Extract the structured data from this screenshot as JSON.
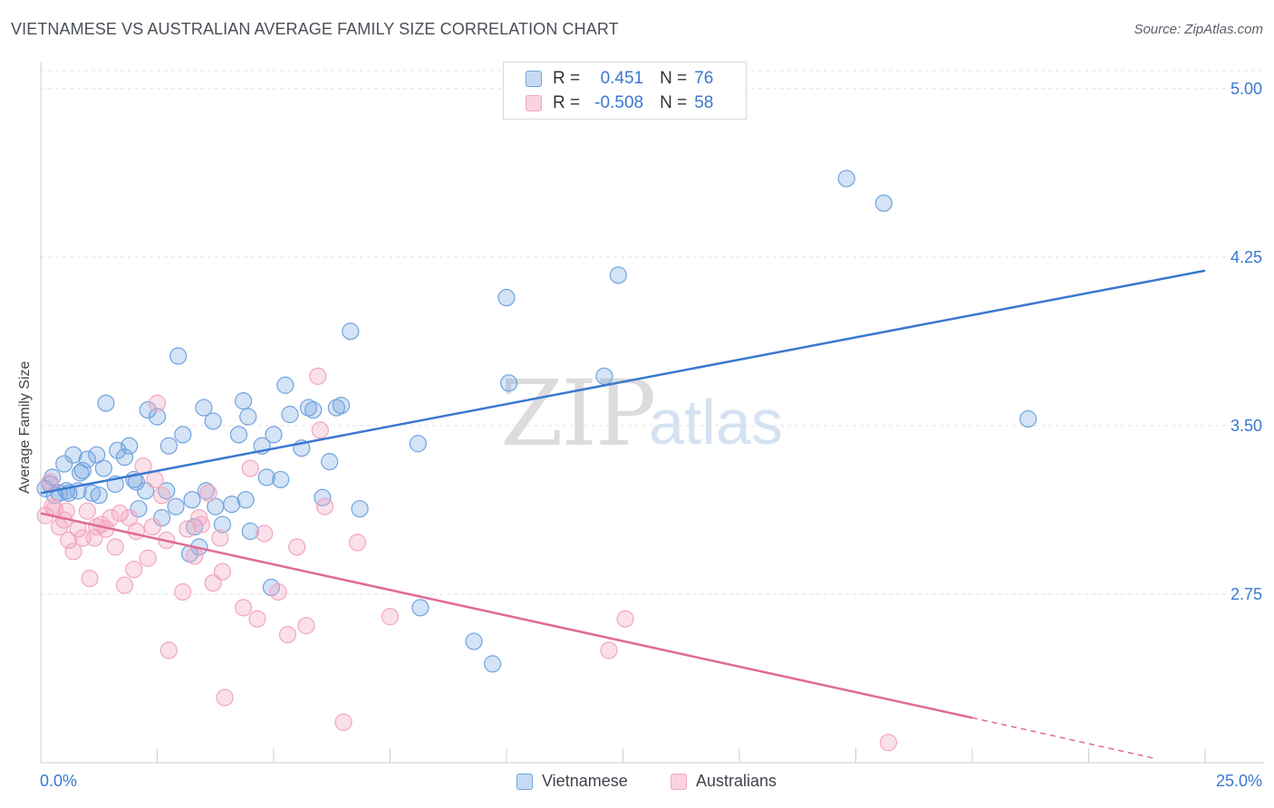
{
  "header": {
    "title": "VIETNAMESE VS AUSTRALIAN AVERAGE FAMILY SIZE CORRELATION CHART",
    "source": "Source: ZipAtlas.com"
  },
  "colors": {
    "blue": "#6fa3df",
    "blue_line": "#3a78d0",
    "pink": "#f2a6bf",
    "pink_line": "#e06a95",
    "axis_label_blue": "#3a78d0"
  },
  "legend_top": {
    "rows": [
      {
        "r_label": "R =",
        "r_value": "0.451",
        "n_label": "N =",
        "n_value": "76"
      },
      {
        "r_label": "R =",
        "r_value": "-0.508",
        "n_label": "N =",
        "n_value": "58"
      }
    ]
  },
  "legend_bottom": {
    "items": [
      {
        "label": "Vietnamese"
      },
      {
        "label": "Australians"
      }
    ]
  },
  "watermark": {
    "zip": "ZIP",
    "atlas": "atlas"
  },
  "chart_data": {
    "type": "scatter",
    "title": "VIETNAMESE VS AUSTRALIAN AVERAGE FAMILY SIZE CORRELATION CHART",
    "xlabel": "",
    "ylabel": "Average Family Size",
    "xlim": [
      0,
      25
    ],
    "ylim": [
      2.0,
      5.08
    ],
    "x_tick_labels": [
      "0.0%",
      "25.0%"
    ],
    "y_ticks": [
      2.75,
      3.5,
      4.25,
      5.0
    ],
    "y_tick_labels": [
      "2.75",
      "3.50",
      "4.25",
      "5.00"
    ],
    "grid": "horizontal dashed",
    "series": [
      {
        "name": "Vietnamese",
        "R": 0.451,
        "N": 76,
        "trend": {
          "x": [
            0,
            25
          ],
          "y": [
            3.2,
            4.19
          ]
        },
        "points": [
          [
            0.1,
            3.22
          ],
          [
            0.2,
            3.24
          ],
          [
            0.25,
            3.27
          ],
          [
            0.3,
            3.19
          ],
          [
            0.4,
            3.2
          ],
          [
            0.5,
            3.33
          ],
          [
            0.55,
            3.21
          ],
          [
            0.7,
            3.37
          ],
          [
            0.8,
            3.21
          ],
          [
            0.85,
            3.29
          ],
          [
            0.9,
            3.3
          ],
          [
            1.0,
            3.35
          ],
          [
            1.1,
            3.2
          ],
          [
            1.2,
            3.37
          ],
          [
            1.35,
            3.31
          ],
          [
            1.4,
            3.6
          ],
          [
            1.6,
            3.24
          ],
          [
            1.65,
            3.39
          ],
          [
            1.8,
            3.36
          ],
          [
            1.9,
            3.41
          ],
          [
            2.0,
            3.26
          ],
          [
            2.1,
            3.13
          ],
          [
            2.25,
            3.21
          ],
          [
            2.3,
            3.57
          ],
          [
            2.5,
            3.54
          ],
          [
            2.6,
            3.09
          ],
          [
            2.7,
            3.21
          ],
          [
            2.75,
            3.41
          ],
          [
            2.9,
            3.14
          ],
          [
            2.95,
            3.81
          ],
          [
            3.05,
            3.46
          ],
          [
            3.2,
            2.93
          ],
          [
            3.25,
            3.17
          ],
          [
            3.3,
            3.05
          ],
          [
            3.4,
            2.96
          ],
          [
            3.5,
            3.58
          ],
          [
            3.55,
            3.21
          ],
          [
            3.7,
            3.52
          ],
          [
            3.75,
            3.14
          ],
          [
            3.9,
            3.06
          ],
          [
            4.1,
            3.15
          ],
          [
            4.25,
            3.46
          ],
          [
            4.35,
            3.61
          ],
          [
            4.4,
            3.17
          ],
          [
            4.45,
            3.54
          ],
          [
            4.5,
            3.03
          ],
          [
            4.75,
            3.41
          ],
          [
            4.85,
            3.27
          ],
          [
            4.95,
            2.78
          ],
          [
            5.0,
            3.46
          ],
          [
            5.15,
            3.26
          ],
          [
            5.25,
            3.68
          ],
          [
            5.35,
            3.55
          ],
          [
            5.6,
            3.4
          ],
          [
            5.75,
            3.58
          ],
          [
            5.85,
            3.57
          ],
          [
            6.05,
            3.18
          ],
          [
            6.2,
            3.34
          ],
          [
            6.35,
            3.58
          ],
          [
            6.45,
            3.59
          ],
          [
            6.65,
            3.92
          ],
          [
            6.85,
            3.13
          ],
          [
            8.1,
            3.42
          ],
          [
            8.15,
            2.69
          ],
          [
            9.3,
            2.54
          ],
          [
            9.7,
            2.44
          ],
          [
            10.0,
            4.07
          ],
          [
            10.05,
            3.69
          ],
          [
            12.1,
            3.72
          ],
          [
            12.4,
            4.17
          ],
          [
            17.3,
            4.6
          ],
          [
            18.1,
            4.49
          ],
          [
            21.2,
            3.53
          ],
          [
            1.25,
            3.19
          ],
          [
            2.05,
            3.25
          ],
          [
            0.6,
            3.2
          ]
        ]
      },
      {
        "name": "Australians",
        "R": -0.508,
        "N": 58,
        "trend": {
          "x": [
            0,
            20
          ],
          "y": [
            3.11,
            2.2
          ]
        },
        "trend_dashed": {
          "x": [
            20,
            23.9
          ],
          "y": [
            2.2,
            2.02
          ]
        },
        "points": [
          [
            0.1,
            3.1
          ],
          [
            0.2,
            3.25
          ],
          [
            0.25,
            3.14
          ],
          [
            0.3,
            3.13
          ],
          [
            0.4,
            3.05
          ],
          [
            0.5,
            3.08
          ],
          [
            0.55,
            3.12
          ],
          [
            0.6,
            2.99
          ],
          [
            0.7,
            2.94
          ],
          [
            0.8,
            3.04
          ],
          [
            0.9,
            3.0
          ],
          [
            1.0,
            3.12
          ],
          [
            1.05,
            2.82
          ],
          [
            1.15,
            3.0
          ],
          [
            1.2,
            3.05
          ],
          [
            1.3,
            3.06
          ],
          [
            1.4,
            3.04
          ],
          [
            1.5,
            3.09
          ],
          [
            1.6,
            2.96
          ],
          [
            1.7,
            3.11
          ],
          [
            1.8,
            2.79
          ],
          [
            1.9,
            3.09
          ],
          [
            2.0,
            2.86
          ],
          [
            2.05,
            3.03
          ],
          [
            2.2,
            3.32
          ],
          [
            2.3,
            2.91
          ],
          [
            2.4,
            3.05
          ],
          [
            2.45,
            3.26
          ],
          [
            2.5,
            3.6
          ],
          [
            2.6,
            3.19
          ],
          [
            2.7,
            2.99
          ],
          [
            2.75,
            2.5
          ],
          [
            3.05,
            2.76
          ],
          [
            3.15,
            3.04
          ],
          [
            3.3,
            2.92
          ],
          [
            3.4,
            3.09
          ],
          [
            3.45,
            3.06
          ],
          [
            3.6,
            3.2
          ],
          [
            3.7,
            2.8
          ],
          [
            3.85,
            3.0
          ],
          [
            3.9,
            2.85
          ],
          [
            3.95,
            2.29
          ],
          [
            4.35,
            2.69
          ],
          [
            4.5,
            3.31
          ],
          [
            4.65,
            2.64
          ],
          [
            4.8,
            3.02
          ],
          [
            5.1,
            2.76
          ],
          [
            5.3,
            2.57
          ],
          [
            5.5,
            2.96
          ],
          [
            5.7,
            2.61
          ],
          [
            5.95,
            3.72
          ],
          [
            6.0,
            3.48
          ],
          [
            6.1,
            3.14
          ],
          [
            6.5,
            2.18
          ],
          [
            6.8,
            2.98
          ],
          [
            7.5,
            2.65
          ],
          [
            12.2,
            2.5
          ],
          [
            12.55,
            2.64
          ]
        ]
      }
    ],
    "extra_points": {
      "Australians": [
        [
          18.2,
          2.09
        ]
      ]
    }
  }
}
